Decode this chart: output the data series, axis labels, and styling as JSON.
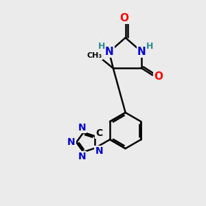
{
  "bg_color": "#ebebeb",
  "bond_color": "#000000",
  "N_color": "#0000cc",
  "O_color": "#ff0000",
  "H_color": "#2e8b8b",
  "C_color": "#000000",
  "line_width": 1.8,
  "figsize": [
    3.0,
    3.0
  ],
  "dpi": 100,
  "xlim": [
    0,
    10
  ],
  "ylim": [
    0,
    10
  ]
}
